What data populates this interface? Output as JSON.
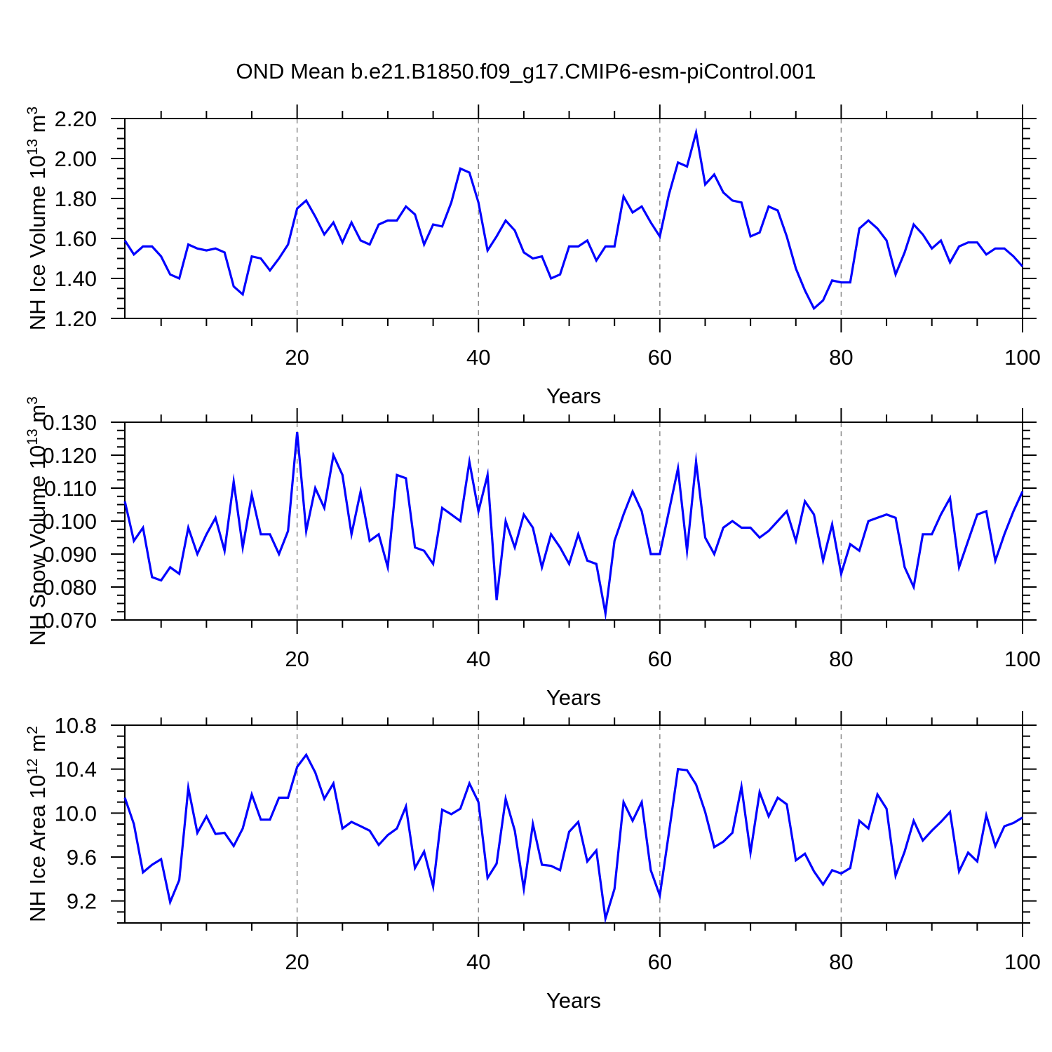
{
  "title": "OND Mean b.e21.B1850.f09_g17.CMIP6-esm-piControl.001",
  "figure": {
    "background": "#ffffff",
    "line_color": "#0000ff",
    "axis_color": "#000000",
    "grid_color": "#8c8c8c"
  },
  "chart_data": [
    {
      "name": "nh-ice-volume",
      "type": "line",
      "ylabel": [
        {
          "t": "NH Ice Volume 10"
        },
        {
          "t": "13",
          "sup": true
        },
        {
          "t": " m"
        },
        {
          "t": "3",
          "sup": true
        }
      ],
      "xlabel": "Years",
      "x_range": [
        1,
        100
      ],
      "x_major_ticks": [
        20,
        40,
        60,
        80,
        100
      ],
      "x_tick_labels": [
        "20",
        "40",
        "60",
        "80",
        "100"
      ],
      "x_minor_step": 5,
      "x_gridlines": [
        20,
        40,
        60,
        80
      ],
      "y_range": [
        1.2,
        2.2
      ],
      "y_major_ticks": [
        1.2,
        1.4,
        1.6,
        1.8,
        2.0,
        2.2
      ],
      "y_tick_labels": [
        "1.20",
        "1.40",
        "1.60",
        "1.80",
        "2.00",
        "2.20"
      ],
      "y_minor_step": 0.05,
      "grid": "x-dashed",
      "legend": "none",
      "values": [
        1.59,
        1.52,
        1.56,
        1.56,
        1.51,
        1.42,
        1.4,
        1.57,
        1.55,
        1.54,
        1.55,
        1.53,
        1.36,
        1.32,
        1.51,
        1.5,
        1.44,
        1.5,
        1.57,
        1.75,
        1.79,
        1.71,
        1.62,
        1.68,
        1.58,
        1.68,
        1.59,
        1.57,
        1.67,
        1.69,
        1.69,
        1.76,
        1.72,
        1.57,
        1.67,
        1.66,
        1.78,
        1.95,
        1.93,
        1.78,
        1.54,
        1.61,
        1.69,
        1.64,
        1.53,
        1.5,
        1.51,
        1.4,
        1.42,
        1.56,
        1.56,
        1.59,
        1.49,
        1.56,
        1.56,
        1.81,
        1.73,
        1.76,
        1.68,
        1.61,
        1.82,
        1.98,
        1.96,
        2.13,
        1.87,
        1.92,
        1.83,
        1.79,
        1.78,
        1.61,
        1.63,
        1.76,
        1.74,
        1.61,
        1.45,
        1.34,
        1.25,
        1.29,
        1.39,
        1.38,
        1.38,
        1.65,
        1.69,
        1.65,
        1.59,
        1.42,
        1.53,
        1.67,
        1.62,
        1.55,
        1.59,
        1.48,
        1.56,
        1.58,
        1.58,
        1.52,
        1.55,
        1.55,
        1.51,
        1.46
      ]
    },
    {
      "name": "nh-snow-volume",
      "type": "line",
      "ylabel": [
        {
          "t": "NH Snow Volume 10"
        },
        {
          "t": "13",
          "sup": true
        },
        {
          "t": " m"
        },
        {
          "t": "3",
          "sup": true
        }
      ],
      "xlabel": "Years",
      "x_range": [
        1,
        100
      ],
      "x_major_ticks": [
        20,
        40,
        60,
        80,
        100
      ],
      "x_tick_labels": [
        "20",
        "40",
        "60",
        "80",
        "100"
      ],
      "x_minor_step": 5,
      "x_gridlines": [
        20,
        40,
        60,
        80
      ],
      "y_range": [
        0.07,
        0.13
      ],
      "y_major_ticks": [
        0.07,
        0.08,
        0.09,
        0.1,
        0.11,
        0.12,
        0.13
      ],
      "y_tick_labels": [
        "0.070",
        "0.080",
        "0.090",
        "0.100",
        "0.110",
        "0.120",
        "0.130"
      ],
      "y_minor_step": 0.0025,
      "grid": "x-dashed",
      "legend": "none",
      "values": [
        0.106,
        0.094,
        0.098,
        0.083,
        0.082,
        0.086,
        0.084,
        0.098,
        0.09,
        0.096,
        0.101,
        0.091,
        0.112,
        0.092,
        0.108,
        0.096,
        0.096,
        0.09,
        0.097,
        0.127,
        0.097,
        0.11,
        0.104,
        0.12,
        0.114,
        0.096,
        0.109,
        0.094,
        0.096,
        0.086,
        0.114,
        0.113,
        0.092,
        0.091,
        0.087,
        0.104,
        0.102,
        0.1,
        0.118,
        0.103,
        0.114,
        0.076,
        0.1,
        0.092,
        0.102,
        0.098,
        0.086,
        0.096,
        0.092,
        0.087,
        0.096,
        0.088,
        0.087,
        0.072,
        0.094,
        0.102,
        0.109,
        0.103,
        0.09,
        0.09,
        0.103,
        0.116,
        0.091,
        0.118,
        0.095,
        0.09,
        0.098,
        0.1,
        0.098,
        0.098,
        0.095,
        0.097,
        0.1,
        0.103,
        0.094,
        0.106,
        0.102,
        0.088,
        0.099,
        0.084,
        0.093,
        0.091,
        0.1,
        0.101,
        0.102,
        0.101,
        0.086,
        0.08,
        0.096,
        0.096,
        0.102,
        0.107,
        0.086,
        0.094,
        0.102,
        0.103,
        0.088,
        0.096,
        0.103,
        0.109
      ]
    },
    {
      "name": "nh-ice-area",
      "type": "line",
      "ylabel": [
        {
          "t": "NH Ice Area 10"
        },
        {
          "t": "12",
          "sup": true
        },
        {
          "t": " m"
        },
        {
          "t": "2",
          "sup": true
        }
      ],
      "xlabel": "Years",
      "x_range": [
        1,
        100
      ],
      "x_major_ticks": [
        20,
        40,
        60,
        80,
        100
      ],
      "x_tick_labels": [
        "20",
        "40",
        "60",
        "80",
        "100"
      ],
      "x_minor_step": 5,
      "x_gridlines": [
        20,
        40,
        60,
        80
      ],
      "y_range": [
        9.0,
        10.8
      ],
      "y_major_ticks": [
        9.2,
        9.6,
        10.0,
        10.4,
        10.8
      ],
      "y_tick_labels": [
        "9.2",
        "9.6",
        "10.0",
        "10.4",
        "10.8"
      ],
      "y_minor_step": 0.1,
      "grid": "x-dashed",
      "legend": "none",
      "values": [
        10.14,
        9.9,
        9.46,
        9.53,
        9.58,
        9.19,
        9.39,
        10.23,
        9.82,
        9.97,
        9.81,
        9.82,
        9.7,
        9.86,
        10.17,
        9.94,
        9.94,
        10.14,
        10.14,
        10.42,
        10.53,
        10.37,
        10.13,
        10.27,
        9.86,
        9.92,
        9.88,
        9.84,
        9.71,
        9.8,
        9.86,
        10.06,
        9.5,
        9.65,
        9.33,
        10.03,
        9.99,
        10.04,
        10.27,
        10.1,
        9.41,
        9.54,
        10.13,
        9.84,
        9.31,
        9.9,
        9.53,
        9.52,
        9.48,
        9.83,
        9.92,
        9.56,
        9.66,
        9.04,
        9.31,
        10.1,
        9.93,
        10.1,
        9.48,
        9.25,
        9.82,
        10.4,
        10.39,
        10.26,
        10.01,
        9.69,
        9.74,
        9.82,
        10.24,
        9.64,
        10.19,
        9.97,
        10.14,
        10.08,
        9.57,
        9.63,
        9.47,
        9.35,
        9.48,
        9.45,
        9.5,
        9.93,
        9.86,
        10.17,
        10.04,
        9.43,
        9.65,
        9.93,
        9.75,
        9.84,
        9.92,
        10.01,
        9.47,
        9.64,
        9.56,
        9.98,
        9.7,
        9.88,
        9.91,
        9.96
      ]
    }
  ]
}
